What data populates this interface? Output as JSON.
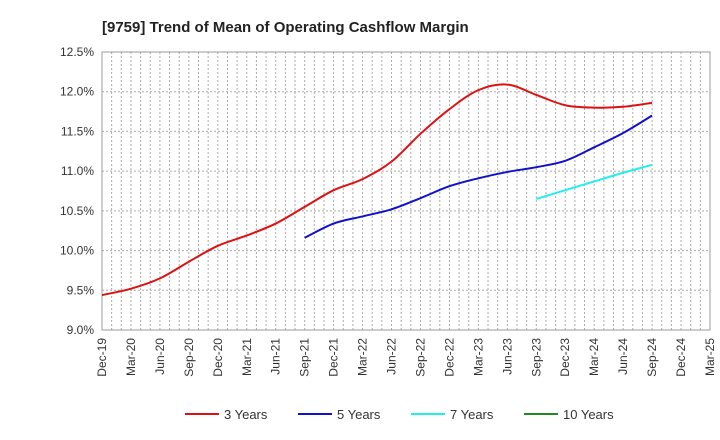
{
  "chart_data": {
    "type": "line",
    "title": "[9759]  Trend of Mean of Operating Cashflow Margin",
    "xlabel": "",
    "ylabel": "",
    "ylim": [
      9.0,
      12.5
    ],
    "y_ticks": [
      9.0,
      9.5,
      10.0,
      10.5,
      11.0,
      11.5,
      12.0,
      12.5
    ],
    "y_tick_labels": [
      "9.0%",
      "9.5%",
      "10.0%",
      "10.5%",
      "11.0%",
      "11.5%",
      "12.0%",
      "12.5%"
    ],
    "x_tick_labels": [
      "Dec-19",
      "Mar-20",
      "Jun-20",
      "Sep-20",
      "Dec-20",
      "Mar-21",
      "Jun-21",
      "Sep-21",
      "Dec-21",
      "Mar-22",
      "Jun-22",
      "Sep-22",
      "Dec-22",
      "Mar-23",
      "Jun-23",
      "Sep-23",
      "Dec-23",
      "Mar-24",
      "Jun-24",
      "Sep-24",
      "Dec-24",
      "Mar-25"
    ],
    "grid": true,
    "legend_position": "bottom",
    "series": [
      {
        "name": "3 Years",
        "color": "#dd1111",
        "start_index": 0,
        "values": [
          9.44,
          9.52,
          9.65,
          9.86,
          10.06,
          10.19,
          10.34,
          10.55,
          10.76,
          10.9,
          11.12,
          11.47,
          11.78,
          12.02,
          12.09,
          11.96,
          11.83,
          11.8,
          11.81,
          11.86
        ]
      },
      {
        "name": "5 Years",
        "color": "#1111cc",
        "start_index": 7,
        "values": [
          10.16,
          10.34,
          10.43,
          10.52,
          10.66,
          10.81,
          10.91,
          10.99,
          11.05,
          11.13,
          11.3,
          11.48,
          11.7
        ]
      },
      {
        "name": "7 Years",
        "color": "#22eeee",
        "start_index": 15,
        "values": [
          10.65,
          10.76,
          10.87,
          10.98,
          11.08
        ]
      },
      {
        "name": "10 Years",
        "color": "#228822",
        "start_index": 0,
        "values": []
      }
    ]
  }
}
